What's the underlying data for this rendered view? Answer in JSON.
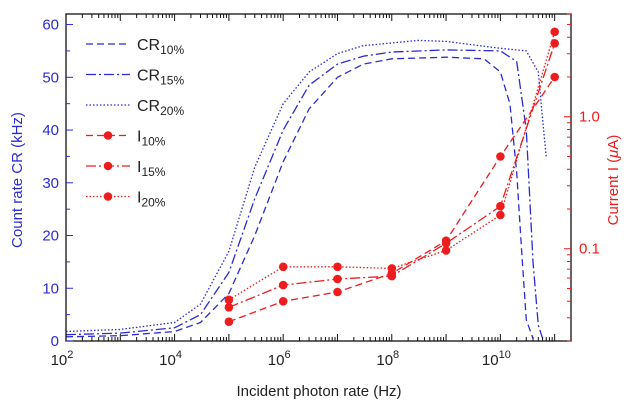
{
  "chart_data": {
    "type": "line",
    "xlabel": "Incident photon rate (Hz)",
    "ylabel_left": "Count rate CR (kHz)",
    "ylabel_right_main": "Current I (",
    "ylabel_right_mu": "μ",
    "ylabel_right_unit": "A)",
    "x_scale": "log",
    "xlim": [
      100,
      200000000000
    ],
    "ylim_left": [
      0,
      62
    ],
    "ylim_right": [
      0.02,
      6
    ],
    "y_right_scale": "log",
    "x_ticks": [
      {
        "base": "10",
        "exp": "2",
        "value": 100
      },
      {
        "base": "10",
        "exp": "4",
        "value": 10000
      },
      {
        "base": "10",
        "exp": "6",
        "value": 1000000
      },
      {
        "base": "10",
        "exp": "8",
        "value": 100000000
      },
      {
        "base": "10",
        "exp": "10",
        "value": 10000000000
      }
    ],
    "y_left_ticks": [
      "0",
      "10",
      "20",
      "30",
      "40",
      "50",
      "60"
    ],
    "y_right_ticks": [
      {
        "label": "0.1",
        "value": 0.1
      },
      {
        "label": "1.0",
        "value": 1.0
      }
    ],
    "legend_position": "top-left",
    "colors": {
      "cr": "#2b2bd6",
      "current": "#ee1c1c",
      "axis_left": "#2b2bd6",
      "axis_right": "#ee1c1c"
    },
    "cr_series": [
      {
        "name": "CR",
        "sub": "10%",
        "dash": "dashed",
        "x": [
          100,
          1000,
          10000,
          30000,
          100000,
          300000,
          1000000,
          3000000,
          10000000,
          30000000,
          100000000,
          1000000000,
          5000000000,
          10000000000,
          15000000000,
          20000000000,
          25000000000,
          30000000000,
          40000000000
        ],
        "y": [
          0.8,
          1.0,
          1.8,
          3.5,
          9,
          20,
          34,
          44,
          50,
          52.5,
          53.5,
          53.8,
          53.5,
          51,
          45,
          32,
          16,
          4,
          0.5
        ]
      },
      {
        "name": "CR",
        "sub": "15%",
        "dash": "dashdot",
        "x": [
          100,
          1000,
          10000,
          30000,
          100000,
          300000,
          1000000,
          3000000,
          10000000,
          30000000,
          100000000,
          1000000000,
          10000000000,
          20000000000,
          30000000000,
          40000000000,
          50000000000,
          60000000000
        ],
        "y": [
          1.2,
          1.5,
          2.5,
          5,
          13,
          27,
          40,
          48.5,
          52.5,
          54,
          54.8,
          55.2,
          55,
          53,
          40,
          15,
          3,
          0.5
        ]
      },
      {
        "name": "CR",
        "sub": "20%",
        "dash": "dotted",
        "x": [
          100,
          1000,
          10000,
          30000,
          100000,
          300000,
          1000000,
          3000000,
          10000000,
          30000000,
          100000000,
          300000000,
          1000000000,
          10000000000,
          30000000000,
          50000000000,
          60000000000,
          70000000000
        ],
        "y": [
          1.8,
          2.2,
          3.5,
          7,
          17,
          33,
          45,
          51,
          54.5,
          56,
          56.5,
          57,
          56.8,
          55.5,
          55,
          51,
          42,
          35
        ]
      }
    ],
    "current_series": [
      {
        "name": "I",
        "sub": "10%",
        "dash": "dashed",
        "x": [
          100000,
          1000000,
          10000000,
          100000000,
          1000000000,
          10000000000,
          100000000000
        ],
        "y": [
          0.028,
          0.04,
          0.047,
          0.065,
          0.115,
          0.5,
          2.0
        ]
      },
      {
        "name": "I",
        "sub": "15%",
        "dash": "dashdot",
        "x": [
          100000,
          1000000,
          10000000,
          100000000,
          1000000000,
          10000000000,
          100000000000
        ],
        "y": [
          0.036,
          0.053,
          0.059,
          0.062,
          0.11,
          0.21,
          3.6
        ]
      },
      {
        "name": "I",
        "sub": "20%",
        "dash": "dotted",
        "x": [
          100000,
          1000000,
          10000000,
          100000000,
          1000000000,
          10000000000,
          100000000000
        ],
        "y": [
          0.041,
          0.073,
          0.073,
          0.071,
          0.097,
          0.18,
          4.4
        ]
      }
    ]
  }
}
